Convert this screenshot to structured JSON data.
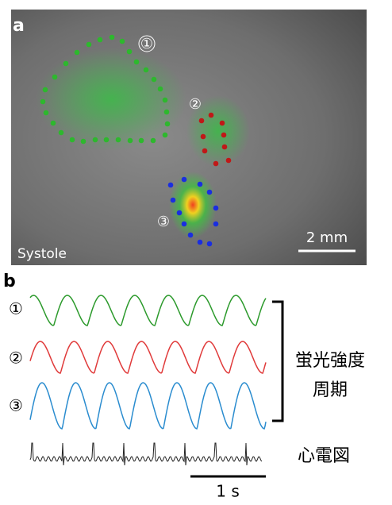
{
  "panel_a": {
    "label": "a",
    "regions": [
      "①",
      "②",
      "③"
    ],
    "phase": "Systole",
    "scale_bar": "2 mm"
  },
  "panel_b": {
    "label": "b",
    "traces": [
      "①",
      "②",
      "③"
    ],
    "bracket_label": [
      "蛍光強度",
      "周期"
    ],
    "ecg_label": "心電図",
    "time_scale": "1 s"
  }
}
